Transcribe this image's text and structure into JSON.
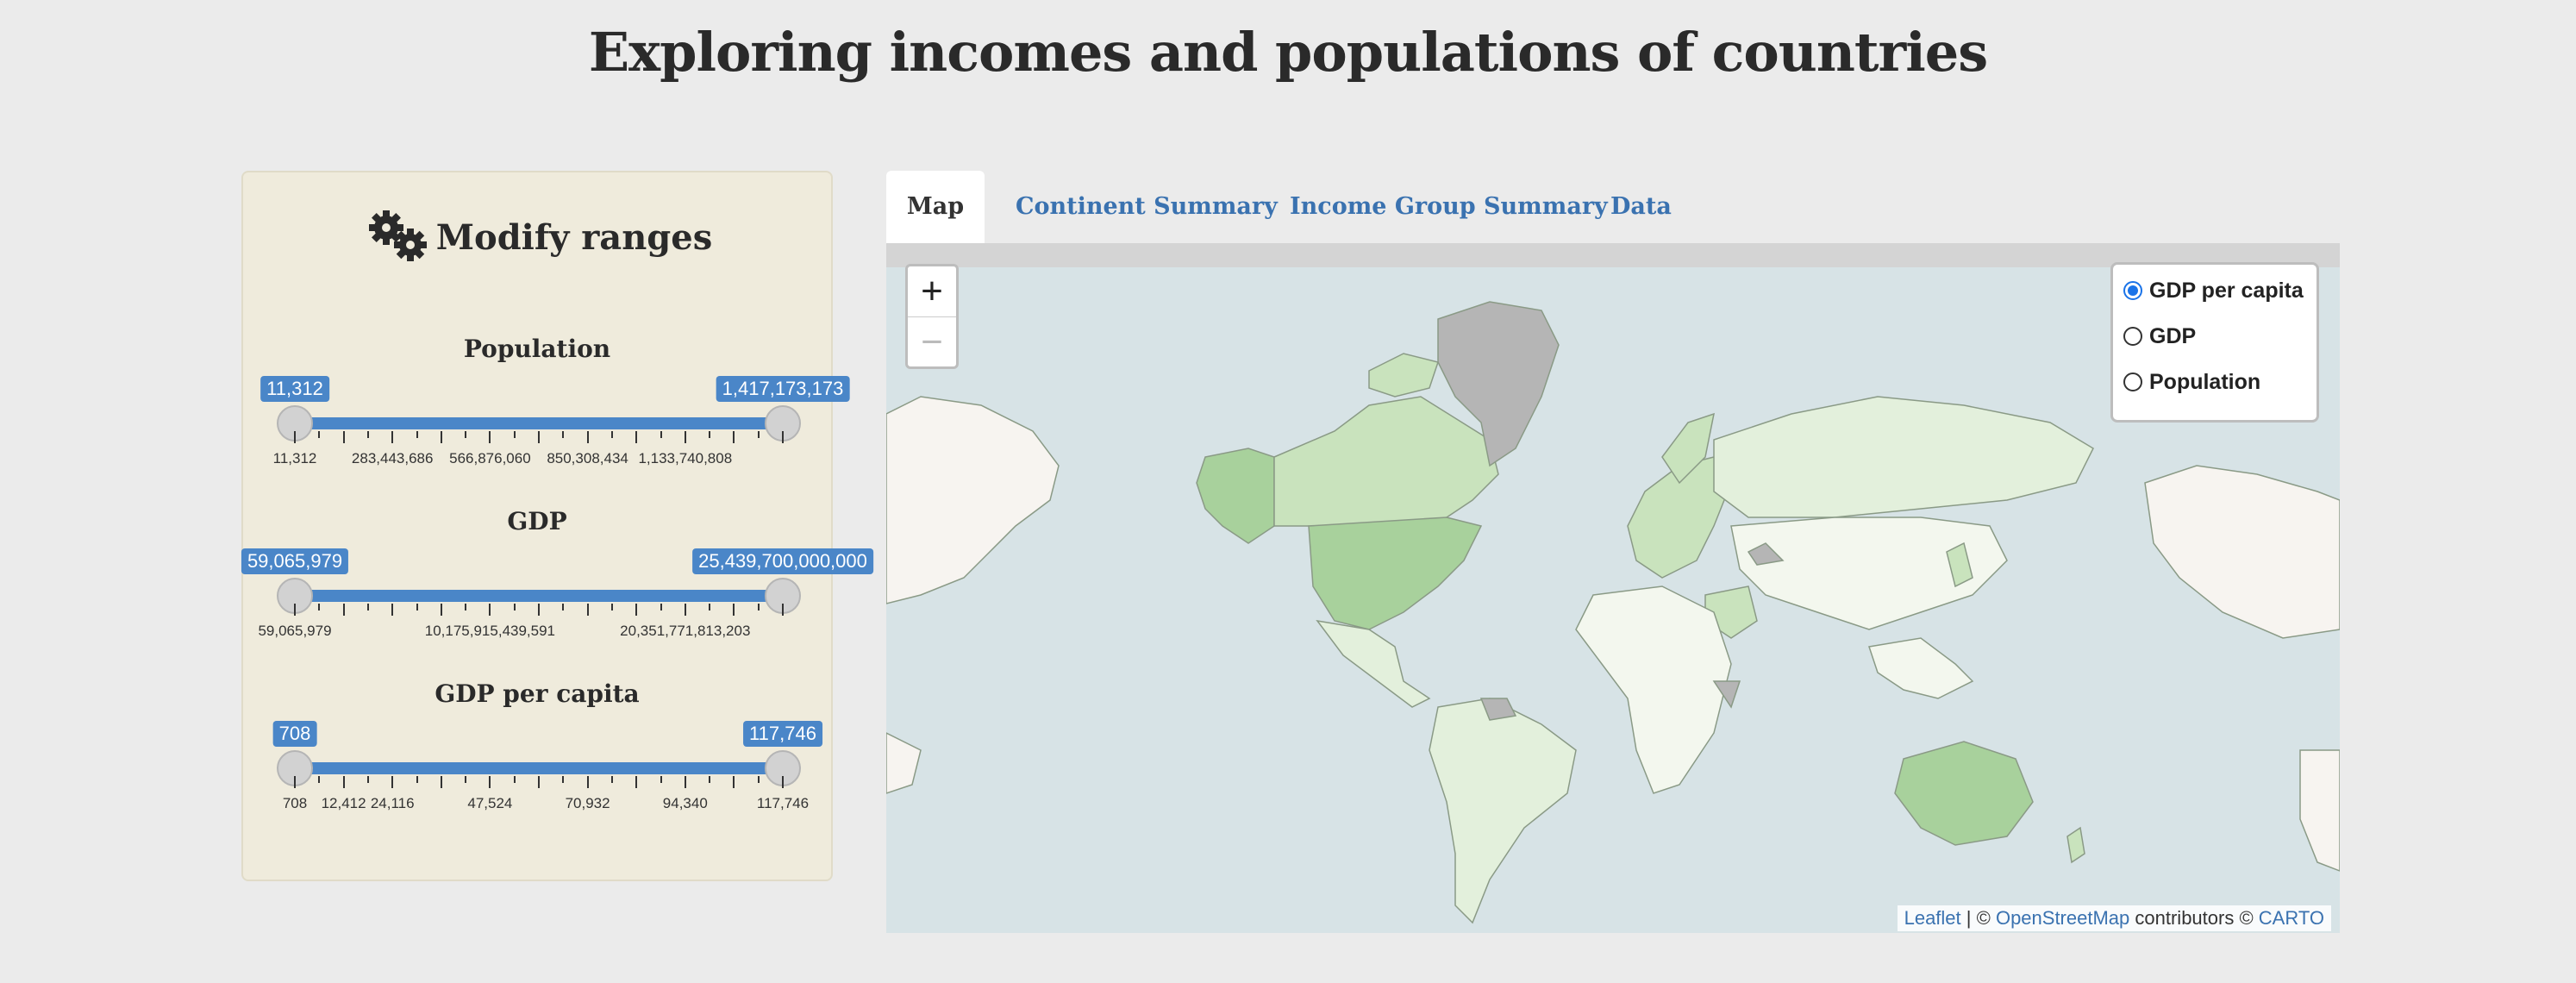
{
  "title": "Exploring incomes and populations of countries",
  "sidebar": {
    "heading": "Modify ranges",
    "icon": "gears-icon",
    "sliders": [
      {
        "label": "Population",
        "min_value": "11,312",
        "max_value": "1,417,173,173",
        "range_fraction": [
          0,
          1
        ],
        "ticks": [
          "11,312",
          "283,443,686",
          "566,876,060",
          "850,308,434",
          "1,133,740,808"
        ]
      },
      {
        "label": "GDP",
        "min_value": "59,065,979",
        "max_value": "25,439,700,000,000",
        "range_fraction": [
          0,
          1
        ],
        "ticks": [
          "59,065,979",
          "10,175,915,439,591",
          "20,351,771,813,203"
        ]
      },
      {
        "label": "GDP per capita",
        "min_value": "708",
        "max_value": "117,746",
        "range_fraction": [
          0,
          1
        ],
        "ticks": [
          "708",
          "12,412",
          "24,116",
          "47,524",
          "70,932",
          "94,340",
          "117,746"
        ]
      }
    ]
  },
  "tabs": [
    {
      "label": "Map",
      "active": true
    },
    {
      "label": "Continent Summary",
      "active": false
    },
    {
      "label": "Income Group Summary",
      "active": false
    },
    {
      "label": "Data",
      "active": false
    }
  ],
  "map": {
    "zoom_in": "+",
    "zoom_out": "−",
    "layers": [
      {
        "label": "GDP per capita",
        "selected": true
      },
      {
        "label": "GDP",
        "selected": false
      },
      {
        "label": "Population",
        "selected": false
      }
    ],
    "attribution": {
      "leaflet": "Leaflet",
      "sep": "| ©",
      "osm": "OpenStreetMap",
      "contributors": "contributors ©",
      "carto": "CARTO"
    },
    "colors": {
      "ocean": "#d7e3e6",
      "no_data": "#b5b5b5",
      "high": "#a8d19c",
      "mid": "#c9e3bd",
      "low": "#e3f0dc",
      "lowest": "#f3f7ee",
      "tile_land": "#f7f4f0"
    }
  }
}
